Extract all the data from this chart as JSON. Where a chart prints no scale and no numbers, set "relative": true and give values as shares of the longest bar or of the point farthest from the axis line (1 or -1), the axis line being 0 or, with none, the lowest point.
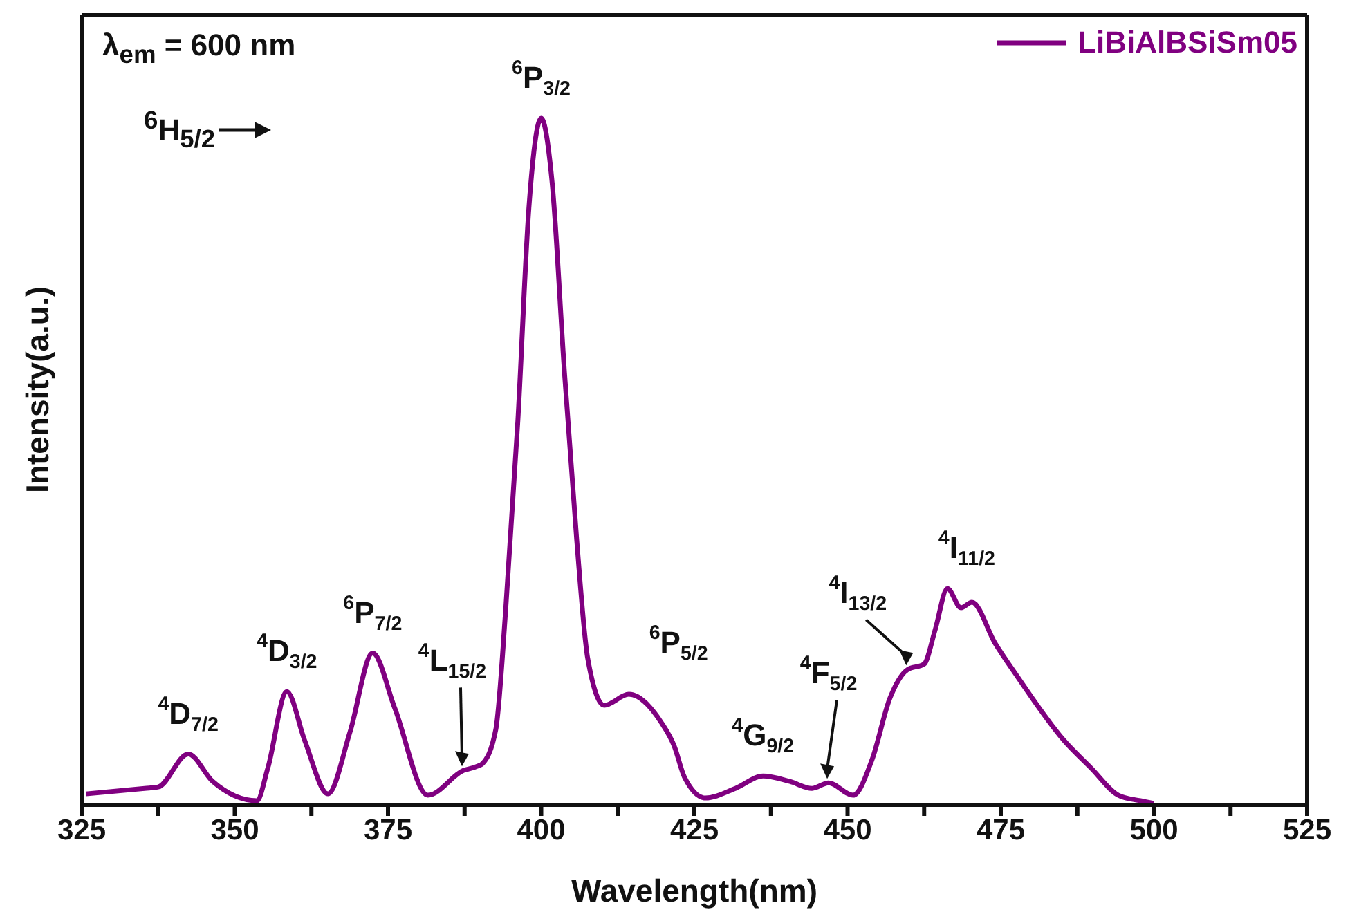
{
  "chart_data": {
    "type": "line",
    "relative": true,
    "xlabel": "Wavelength(nm)",
    "ylabel": "Intensity(a.u.)",
    "xlim": [
      325,
      525
    ],
    "xticks": [
      325,
      {
        "value": 337.5,
        "label": null
      },
      350,
      {
        "value": 362.5,
        "label": null
      },
      375,
      {
        "value": 387.5,
        "label": null
      },
      400,
      {
        "value": 412.5,
        "label": null
      },
      425,
      {
        "value": 437.5,
        "label": null
      },
      450,
      {
        "value": 462.5,
        "label": null
      },
      475,
      {
        "value": 487.5,
        "label": null
      },
      500,
      {
        "value": 512.5,
        "label": null
      },
      525
    ],
    "x": [
      325.7,
      335.3,
      337.5,
      342.4,
      346.4,
      353.6,
      355.4,
      358.5,
      361.4,
      365.2,
      368.8,
      372.5,
      376.1,
      381.5,
      387.3,
      389.5,
      390.4,
      392.6,
      394.2,
      396.2,
      398,
      400,
      401.8,
      403.8,
      405.8,
      407.6,
      410.3,
      414.3,
      419.6,
      421.7,
      423.4,
      426.8,
      431.7,
      436.2,
      440.6,
      444.2,
      446.9,
      450.9,
      454,
      456.9,
      459.8,
      462.5,
      464.3,
      466.3,
      468.5,
      470.3,
      474.1,
      477.7,
      485.3,
      489.7,
      494.2,
      497.8,
      500
    ],
    "series": [
      {
        "name": "LiBiAlBSiSm05",
        "color": "#800080",
        "values": [
          0.016,
          0.024,
          0.026,
          0.074,
          0.034,
          0.006,
          0.054,
          0.165,
          0.094,
          0.016,
          0.106,
          0.221,
          0.141,
          0.014,
          0.05,
          0.056,
          0.06,
          0.11,
          0.283,
          0.56,
          0.87,
          1,
          0.905,
          0.63,
          0.386,
          0.213,
          0.145,
          0.161,
          0.12,
          0.086,
          0.04,
          0.01,
          0.024,
          0.042,
          0.034,
          0.024,
          0.032,
          0.014,
          0.066,
          0.155,
          0.197,
          0.205,
          0.255,
          0.315,
          0.287,
          0.295,
          0.235,
          0.187,
          0.094,
          0.054,
          0.014,
          0.006,
          0.002
        ]
      }
    ],
    "legend": "top right",
    "marker": "none",
    "line_style": "solid",
    "annotations": [
      "λ$_{em}$ = 600 nm",
      "$^{6}$H$_{5/2}$",
      {
        "text": "$^{4}$D$_{7/2}$",
        "x": 342.4,
        "y": 0.074
      },
      {
        "text": "$^{4}$D$_{3/2}$",
        "x": 358.5,
        "y": 0.165
      },
      {
        "text": "$^{6}$P$_{7/2}$",
        "x": 372.5,
        "y": 0.221
      },
      {
        "text": "$^{4}$L$_{15/2}$",
        "x": 387.3,
        "y": 0.05
      },
      {
        "text": "$^{6}$P$_{3/2}$",
        "x": 400,
        "y": 1
      },
      {
        "text": "$^{6}$P$_{5/2}$",
        "x": 414.3,
        "y": 0.161
      },
      {
        "text": "$^{4}$G$_{9/2}$",
        "x": 436.2,
        "y": 0.042
      },
      {
        "text": "$^{4}$F$_{5/2}$",
        "x": 446.9,
        "y": 0.032
      },
      {
        "text": "$^{4}$I$_{13/2}$",
        "x": 459.8,
        "y": 0.197
      },
      {
        "text": "$^{4}$I$_{11/2}$",
        "x": 466.3,
        "y": 0.315
      }
    ]
  }
}
